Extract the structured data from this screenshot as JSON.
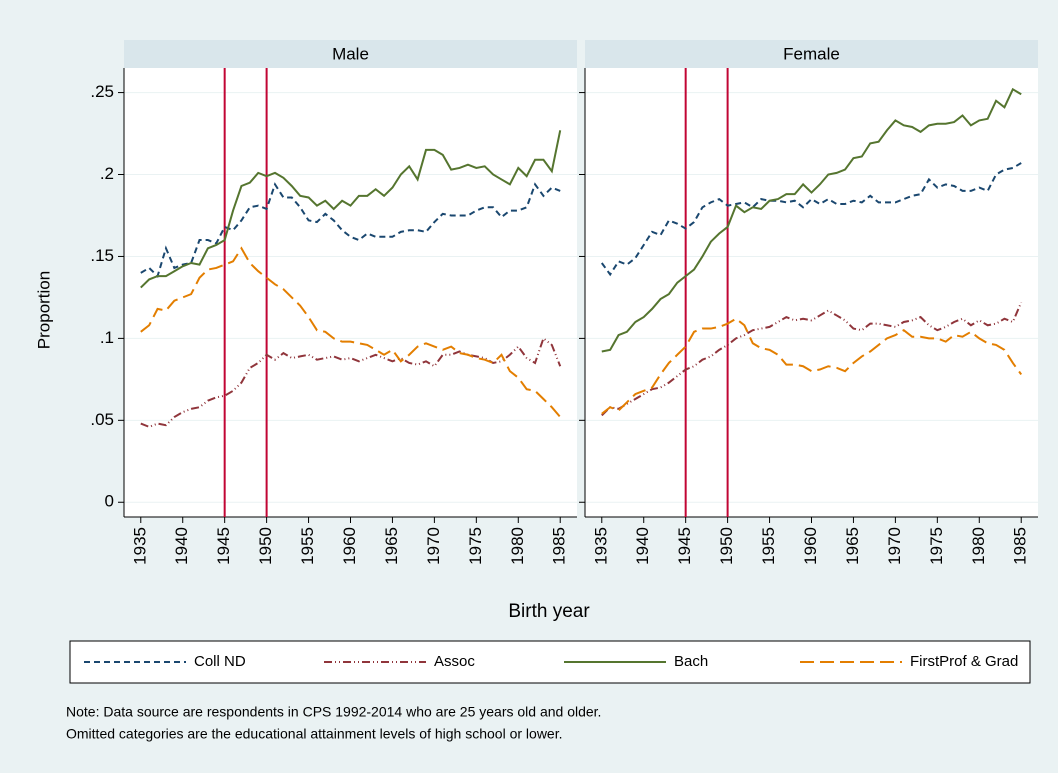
{
  "chart_data": {
    "type": "line",
    "ylabel": "Proportion",
    "xlabel": "Birth year",
    "note": [
      "Note: Data source are respondents in CPS 1992-2014 who are 25 years old and older.",
      "Omitted categories are the educational attainment levels of high school or lower."
    ],
    "x": [
      1935,
      1936,
      1937,
      1938,
      1939,
      1940,
      1941,
      1942,
      1943,
      1944,
      1945,
      1946,
      1947,
      1948,
      1949,
      1950,
      1951,
      1952,
      1953,
      1954,
      1955,
      1956,
      1957,
      1958,
      1959,
      1960,
      1961,
      1962,
      1963,
      1964,
      1965,
      1966,
      1967,
      1968,
      1969,
      1970,
      1971,
      1972,
      1973,
      1974,
      1975,
      1976,
      1977,
      1978,
      1979,
      1980,
      1981,
      1982,
      1983,
      1984,
      1985
    ],
    "xlim": [
      1933,
      1987
    ],
    "xticks": [
      1935,
      1940,
      1945,
      1950,
      1955,
      1960,
      1965,
      1970,
      1975,
      1980,
      1985
    ],
    "ylim": [
      -0.009,
      0.265
    ],
    "yticks": [
      0,
      {
        "value": 0.05,
        "label": ".05"
      },
      {
        "value": 0.1,
        "label": ".1"
      },
      {
        "value": 0.15,
        "label": ".15"
      },
      {
        "value": 0.2,
        "label": ".2"
      },
      {
        "value": 0.25,
        "label": ".25"
      }
    ],
    "grid": true,
    "reference_lines": {
      "x": [
        1945,
        1950
      ],
      "color": "#c10534"
    },
    "series": [
      {
        "name": "Coll ND",
        "color": "#1a476f",
        "dash": "6 4"
      },
      {
        "name": "Assoc",
        "color": "#90353b",
        "dash": "8 3 1 3 1 3"
      },
      {
        "name": "Bach",
        "color": "#55752f",
        "dash": "none"
      },
      {
        "name": "FirstProf & Grad",
        "color": "#e37e00",
        "dash": "14 6"
      }
    ],
    "panels": [
      {
        "title": "Male",
        "values": [
          [
            0.14,
            0.143,
            0.138,
            0.155,
            0.143,
            0.145,
            0.146,
            0.16,
            0.16,
            0.158,
            0.168,
            0.166,
            0.172,
            0.18,
            0.181,
            0.179,
            0.194,
            0.186,
            0.186,
            0.18,
            0.172,
            0.171,
            0.176,
            0.172,
            0.166,
            0.162,
            0.16,
            0.164,
            0.162,
            0.162,
            0.162,
            0.165,
            0.166,
            0.166,
            0.165,
            0.171,
            0.176,
            0.175,
            0.175,
            0.175,
            0.178,
            0.18,
            0.18,
            0.174,
            0.178,
            0.178,
            0.18,
            0.194,
            0.187,
            0.192,
            0.19
          ],
          [
            0.048,
            0.046,
            0.048,
            0.047,
            0.052,
            0.055,
            0.057,
            0.058,
            0.062,
            0.064,
            0.065,
            0.068,
            0.073,
            0.082,
            0.085,
            0.09,
            0.087,
            0.091,
            0.088,
            0.089,
            0.09,
            0.087,
            0.088,
            0.089,
            0.087,
            0.088,
            0.086,
            0.088,
            0.09,
            0.088,
            0.086,
            0.088,
            0.085,
            0.084,
            0.086,
            0.083,
            0.09,
            0.09,
            0.092,
            0.09,
            0.089,
            0.088,
            0.085,
            0.086,
            0.09,
            0.095,
            0.088,
            0.085,
            0.1,
            0.096,
            0.083
          ],
          [
            0.131,
            0.136,
            0.138,
            0.138,
            0.141,
            0.144,
            0.146,
            0.145,
            0.155,
            0.157,
            0.16,
            0.178,
            0.193,
            0.195,
            0.201,
            0.199,
            0.201,
            0.198,
            0.193,
            0.187,
            0.186,
            0.181,
            0.184,
            0.179,
            0.184,
            0.181,
            0.187,
            0.187,
            0.191,
            0.187,
            0.192,
            0.2,
            0.205,
            0.197,
            0.215,
            0.215,
            0.212,
            0.203,
            0.204,
            0.206,
            0.204,
            0.205,
            0.2,
            0.197,
            0.194,
            0.204,
            0.199,
            0.209,
            0.209,
            0.202,
            0.227
          ],
          [
            0.104,
            0.108,
            0.118,
            0.117,
            0.123,
            0.125,
            0.127,
            0.137,
            0.142,
            0.143,
            0.145,
            0.147,
            0.155,
            0.146,
            0.141,
            0.137,
            0.133,
            0.13,
            0.125,
            0.12,
            0.113,
            0.105,
            0.104,
            0.1,
            0.098,
            0.098,
            0.097,
            0.096,
            0.093,
            0.09,
            0.093,
            0.086,
            0.09,
            0.095,
            0.097,
            0.095,
            0.093,
            0.095,
            0.091,
            0.09,
            0.088,
            0.087,
            0.085,
            0.09,
            0.08,
            0.076,
            0.069,
            0.068,
            0.063,
            0.058,
            0.052
          ]
        ]
      },
      {
        "title": "Female",
        "values": [
          [
            0.146,
            0.139,
            0.147,
            0.145,
            0.149,
            0.157,
            0.165,
            0.163,
            0.172,
            0.17,
            0.167,
            0.171,
            0.18,
            0.183,
            0.185,
            0.181,
            0.182,
            0.183,
            0.18,
            0.185,
            0.184,
            0.184,
            0.183,
            0.184,
            0.18,
            0.185,
            0.182,
            0.185,
            0.182,
            0.182,
            0.184,
            0.183,
            0.187,
            0.183,
            0.183,
            0.183,
            0.185,
            0.187,
            0.188,
            0.197,
            0.192,
            0.194,
            0.193,
            0.19,
            0.19,
            0.192,
            0.19,
            0.2,
            0.203,
            0.204,
            0.207
          ],
          [
            0.053,
            0.058,
            0.057,
            0.06,
            0.063,
            0.066,
            0.069,
            0.07,
            0.073,
            0.077,
            0.081,
            0.083,
            0.087,
            0.089,
            0.093,
            0.096,
            0.1,
            0.102,
            0.105,
            0.106,
            0.107,
            0.11,
            0.113,
            0.111,
            0.112,
            0.111,
            0.114,
            0.117,
            0.114,
            0.111,
            0.106,
            0.105,
            0.109,
            0.109,
            0.108,
            0.107,
            0.11,
            0.111,
            0.113,
            0.108,
            0.105,
            0.107,
            0.11,
            0.112,
            0.108,
            0.111,
            0.108,
            0.109,
            0.112,
            0.11,
            0.122
          ],
          [
            0.092,
            0.093,
            0.102,
            0.104,
            0.11,
            0.113,
            0.118,
            0.124,
            0.127,
            0.134,
            0.138,
            0.142,
            0.15,
            0.159,
            0.164,
            0.168,
            0.181,
            0.177,
            0.18,
            0.179,
            0.184,
            0.185,
            0.188,
            0.188,
            0.194,
            0.189,
            0.194,
            0.2,
            0.201,
            0.203,
            0.21,
            0.211,
            0.219,
            0.22,
            0.227,
            0.233,
            0.23,
            0.229,
            0.226,
            0.23,
            0.231,
            0.231,
            0.232,
            0.236,
            0.23,
            0.233,
            0.234,
            0.245,
            0.241,
            0.252,
            0.249
          ],
          [
            0.054,
            0.058,
            0.056,
            0.061,
            0.066,
            0.068,
            0.07,
            0.078,
            0.085,
            0.09,
            0.095,
            0.104,
            0.106,
            0.106,
            0.107,
            0.109,
            0.112,
            0.108,
            0.097,
            0.094,
            0.093,
            0.09,
            0.084,
            0.084,
            0.083,
            0.08,
            0.081,
            0.083,
            0.082,
            0.08,
            0.085,
            0.089,
            0.092,
            0.096,
            0.1,
            0.102,
            0.105,
            0.101,
            0.101,
            0.1,
            0.1,
            0.098,
            0.102,
            0.101,
            0.104,
            0.1,
            0.097,
            0.096,
            0.093,
            0.085,
            0.078
          ]
        ]
      }
    ]
  }
}
